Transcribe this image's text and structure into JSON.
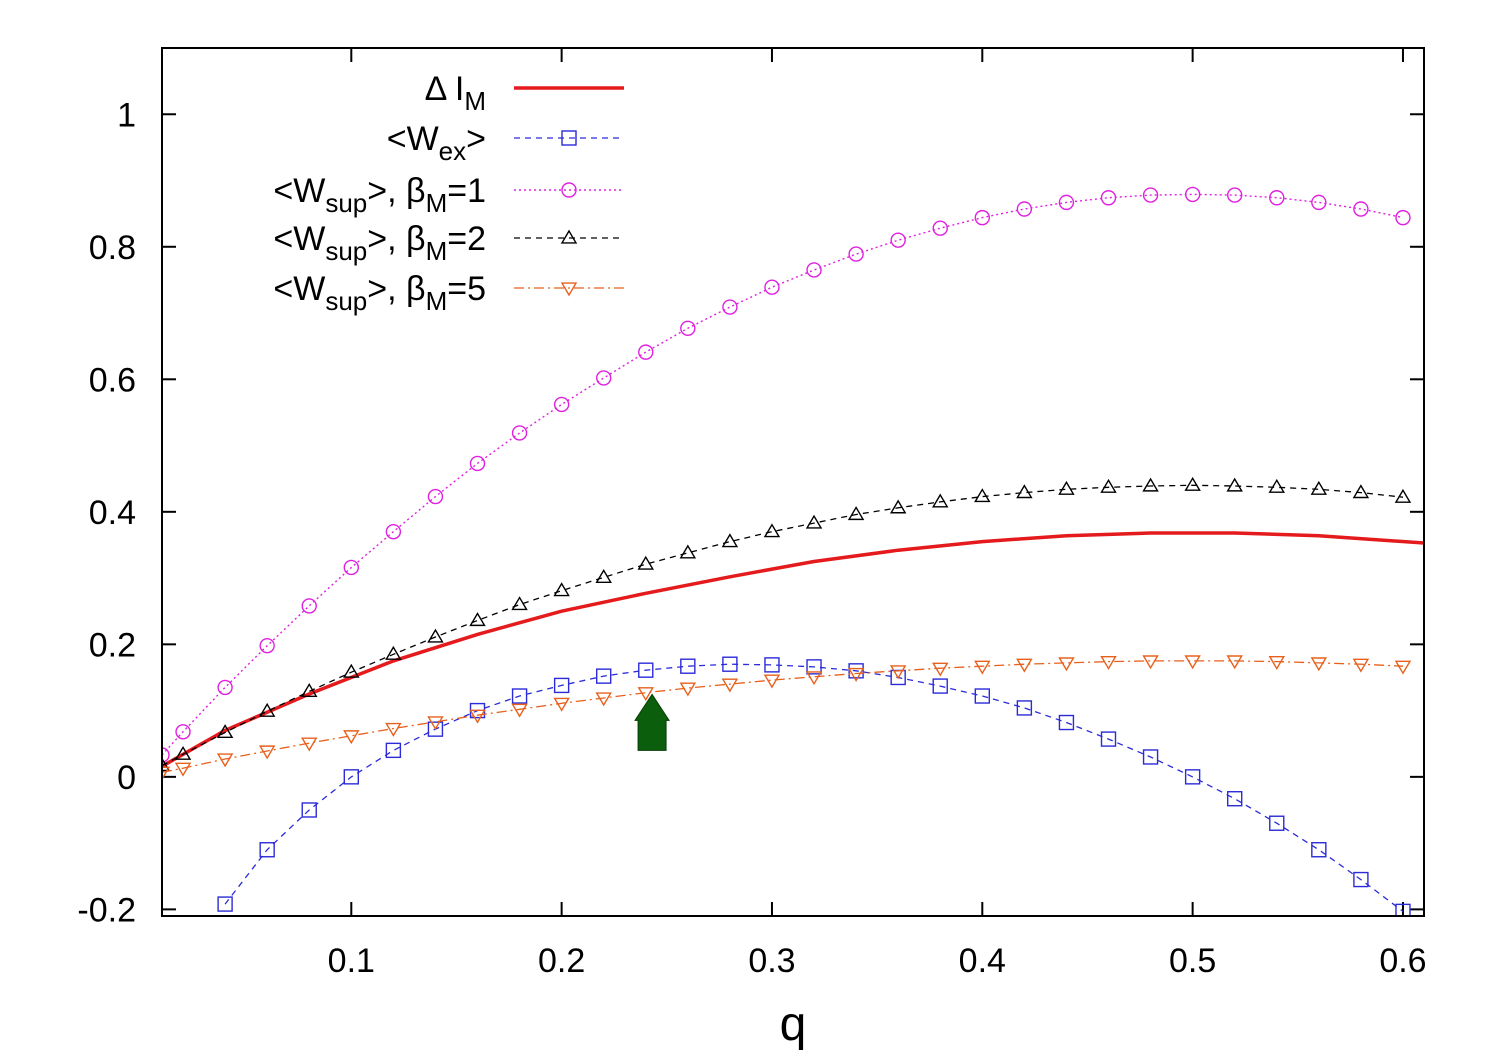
{
  "chart_data": {
    "type": "line",
    "title": "",
    "xlabel": "q",
    "ylabel": "",
    "xlim": [
      0.01,
      0.61
    ],
    "ylim": [
      -0.21,
      1.1
    ],
    "xticks": [
      "0.1",
      "0.2",
      "0.3",
      "0.4",
      "0.5",
      "0.6"
    ],
    "yticks": [
      "-0.2",
      "0",
      "0.2",
      "0.4",
      "0.6",
      "0.8",
      "1"
    ],
    "legend_position": "top-left",
    "series": [
      {
        "name": "ΔI_M",
        "label_main": "Δ I",
        "label_sub": "M",
        "label_tail": "",
        "color": "#e41a1c",
        "style": "solid",
        "marker": "none",
        "x": [
          0.01,
          0.04,
          0.08,
          0.12,
          0.16,
          0.2,
          0.24,
          0.28,
          0.32,
          0.36,
          0.4,
          0.44,
          0.48,
          0.52,
          0.56,
          0.61
        ],
        "y": [
          0.016,
          0.07,
          0.125,
          0.175,
          0.215,
          0.25,
          0.277,
          0.302,
          0.325,
          0.342,
          0.355,
          0.364,
          0.368,
          0.368,
          0.364,
          0.353
        ]
      },
      {
        "name": "<W_ex>",
        "label_main": "<W",
        "label_sub": "ex",
        "label_tail": ">",
        "color": "#2b2bd9",
        "style": "dashed",
        "marker": "square",
        "x": [
          0.04,
          0.06,
          0.08,
          0.1,
          0.12,
          0.14,
          0.16,
          0.18,
          0.2,
          0.22,
          0.24,
          0.26,
          0.28,
          0.3,
          0.32,
          0.34,
          0.36,
          0.38,
          0.4,
          0.42,
          0.44,
          0.46,
          0.48,
          0.5,
          0.52,
          0.54,
          0.56,
          0.58,
          0.6
        ],
        "y": [
          -0.192,
          -0.11,
          -0.05,
          0.0,
          0.04,
          0.072,
          0.1,
          0.122,
          0.138,
          0.152,
          0.161,
          0.167,
          0.17,
          0.169,
          0.166,
          0.16,
          0.15,
          0.137,
          0.122,
          0.104,
          0.082,
          0.057,
          0.03,
          0.0,
          -0.033,
          -0.07,
          -0.11,
          -0.155,
          -0.203
        ]
      },
      {
        "name": "<W_sup>, β_M=1",
        "label_main": "<W",
        "label_sub": "sup",
        "label_tail": ">,  β",
        "label_sub2": "M",
        "label_tail2": "=1",
        "color": "#e020e0",
        "style": "dotted",
        "marker": "circle",
        "x": [
          0.01,
          0.02,
          0.04,
          0.06,
          0.08,
          0.1,
          0.12,
          0.14,
          0.16,
          0.18,
          0.2,
          0.22,
          0.24,
          0.26,
          0.28,
          0.3,
          0.32,
          0.34,
          0.36,
          0.38,
          0.4,
          0.42,
          0.44,
          0.46,
          0.48,
          0.5,
          0.52,
          0.54,
          0.56,
          0.58,
          0.6
        ],
        "y": [
          0.033,
          0.068,
          0.135,
          0.198,
          0.258,
          0.316,
          0.37,
          0.423,
          0.473,
          0.519,
          0.562,
          0.602,
          0.641,
          0.677,
          0.709,
          0.739,
          0.765,
          0.789,
          0.81,
          0.828,
          0.844,
          0.857,
          0.867,
          0.874,
          0.878,
          0.879,
          0.878,
          0.874,
          0.867,
          0.857,
          0.844
        ]
      },
      {
        "name": "<W_sup>, β_M=2",
        "label_main": "<W",
        "label_sub": "sup",
        "label_tail": ">,  β",
        "label_sub2": "M",
        "label_tail2": "=2",
        "color": "#000000",
        "style": "dashed",
        "marker": "triangle-up",
        "x": [
          0.01,
          0.02,
          0.04,
          0.06,
          0.08,
          0.1,
          0.12,
          0.14,
          0.16,
          0.18,
          0.2,
          0.22,
          0.24,
          0.26,
          0.28,
          0.3,
          0.32,
          0.34,
          0.36,
          0.38,
          0.4,
          0.42,
          0.44,
          0.46,
          0.48,
          0.5,
          0.52,
          0.54,
          0.56,
          0.58,
          0.6
        ],
        "y": [
          0.017,
          0.034,
          0.067,
          0.099,
          0.129,
          0.158,
          0.185,
          0.211,
          0.236,
          0.26,
          0.281,
          0.301,
          0.321,
          0.338,
          0.355,
          0.37,
          0.383,
          0.396,
          0.406,
          0.415,
          0.423,
          0.429,
          0.434,
          0.437,
          0.439,
          0.44,
          0.439,
          0.437,
          0.434,
          0.429,
          0.422
        ]
      },
      {
        "name": "<W_sup>, β_M=5",
        "label_main": "<W",
        "label_sub": "sup",
        "label_tail": ">,  β",
        "label_sub2": "M",
        "label_tail2": "=5",
        "color": "#e8601c",
        "style": "dashdot",
        "marker": "triangle-down",
        "x": [
          0.01,
          0.02,
          0.04,
          0.06,
          0.08,
          0.1,
          0.12,
          0.14,
          0.16,
          0.18,
          0.2,
          0.22,
          0.24,
          0.26,
          0.28,
          0.3,
          0.32,
          0.34,
          0.36,
          0.38,
          0.4,
          0.42,
          0.44,
          0.46,
          0.48,
          0.5,
          0.52,
          0.54,
          0.56,
          0.58,
          0.6
        ],
        "y": [
          0.007,
          0.013,
          0.027,
          0.039,
          0.051,
          0.062,
          0.073,
          0.083,
          0.093,
          0.102,
          0.111,
          0.119,
          0.127,
          0.134,
          0.14,
          0.146,
          0.151,
          0.156,
          0.16,
          0.164,
          0.167,
          0.17,
          0.172,
          0.174,
          0.175,
          0.175,
          0.175,
          0.174,
          0.172,
          0.17,
          0.167
        ]
      }
    ],
    "annotations": [
      {
        "type": "arrow",
        "direction": "up",
        "x": 0.243,
        "y": 0.04,
        "color": "#0b5e0b"
      }
    ]
  }
}
